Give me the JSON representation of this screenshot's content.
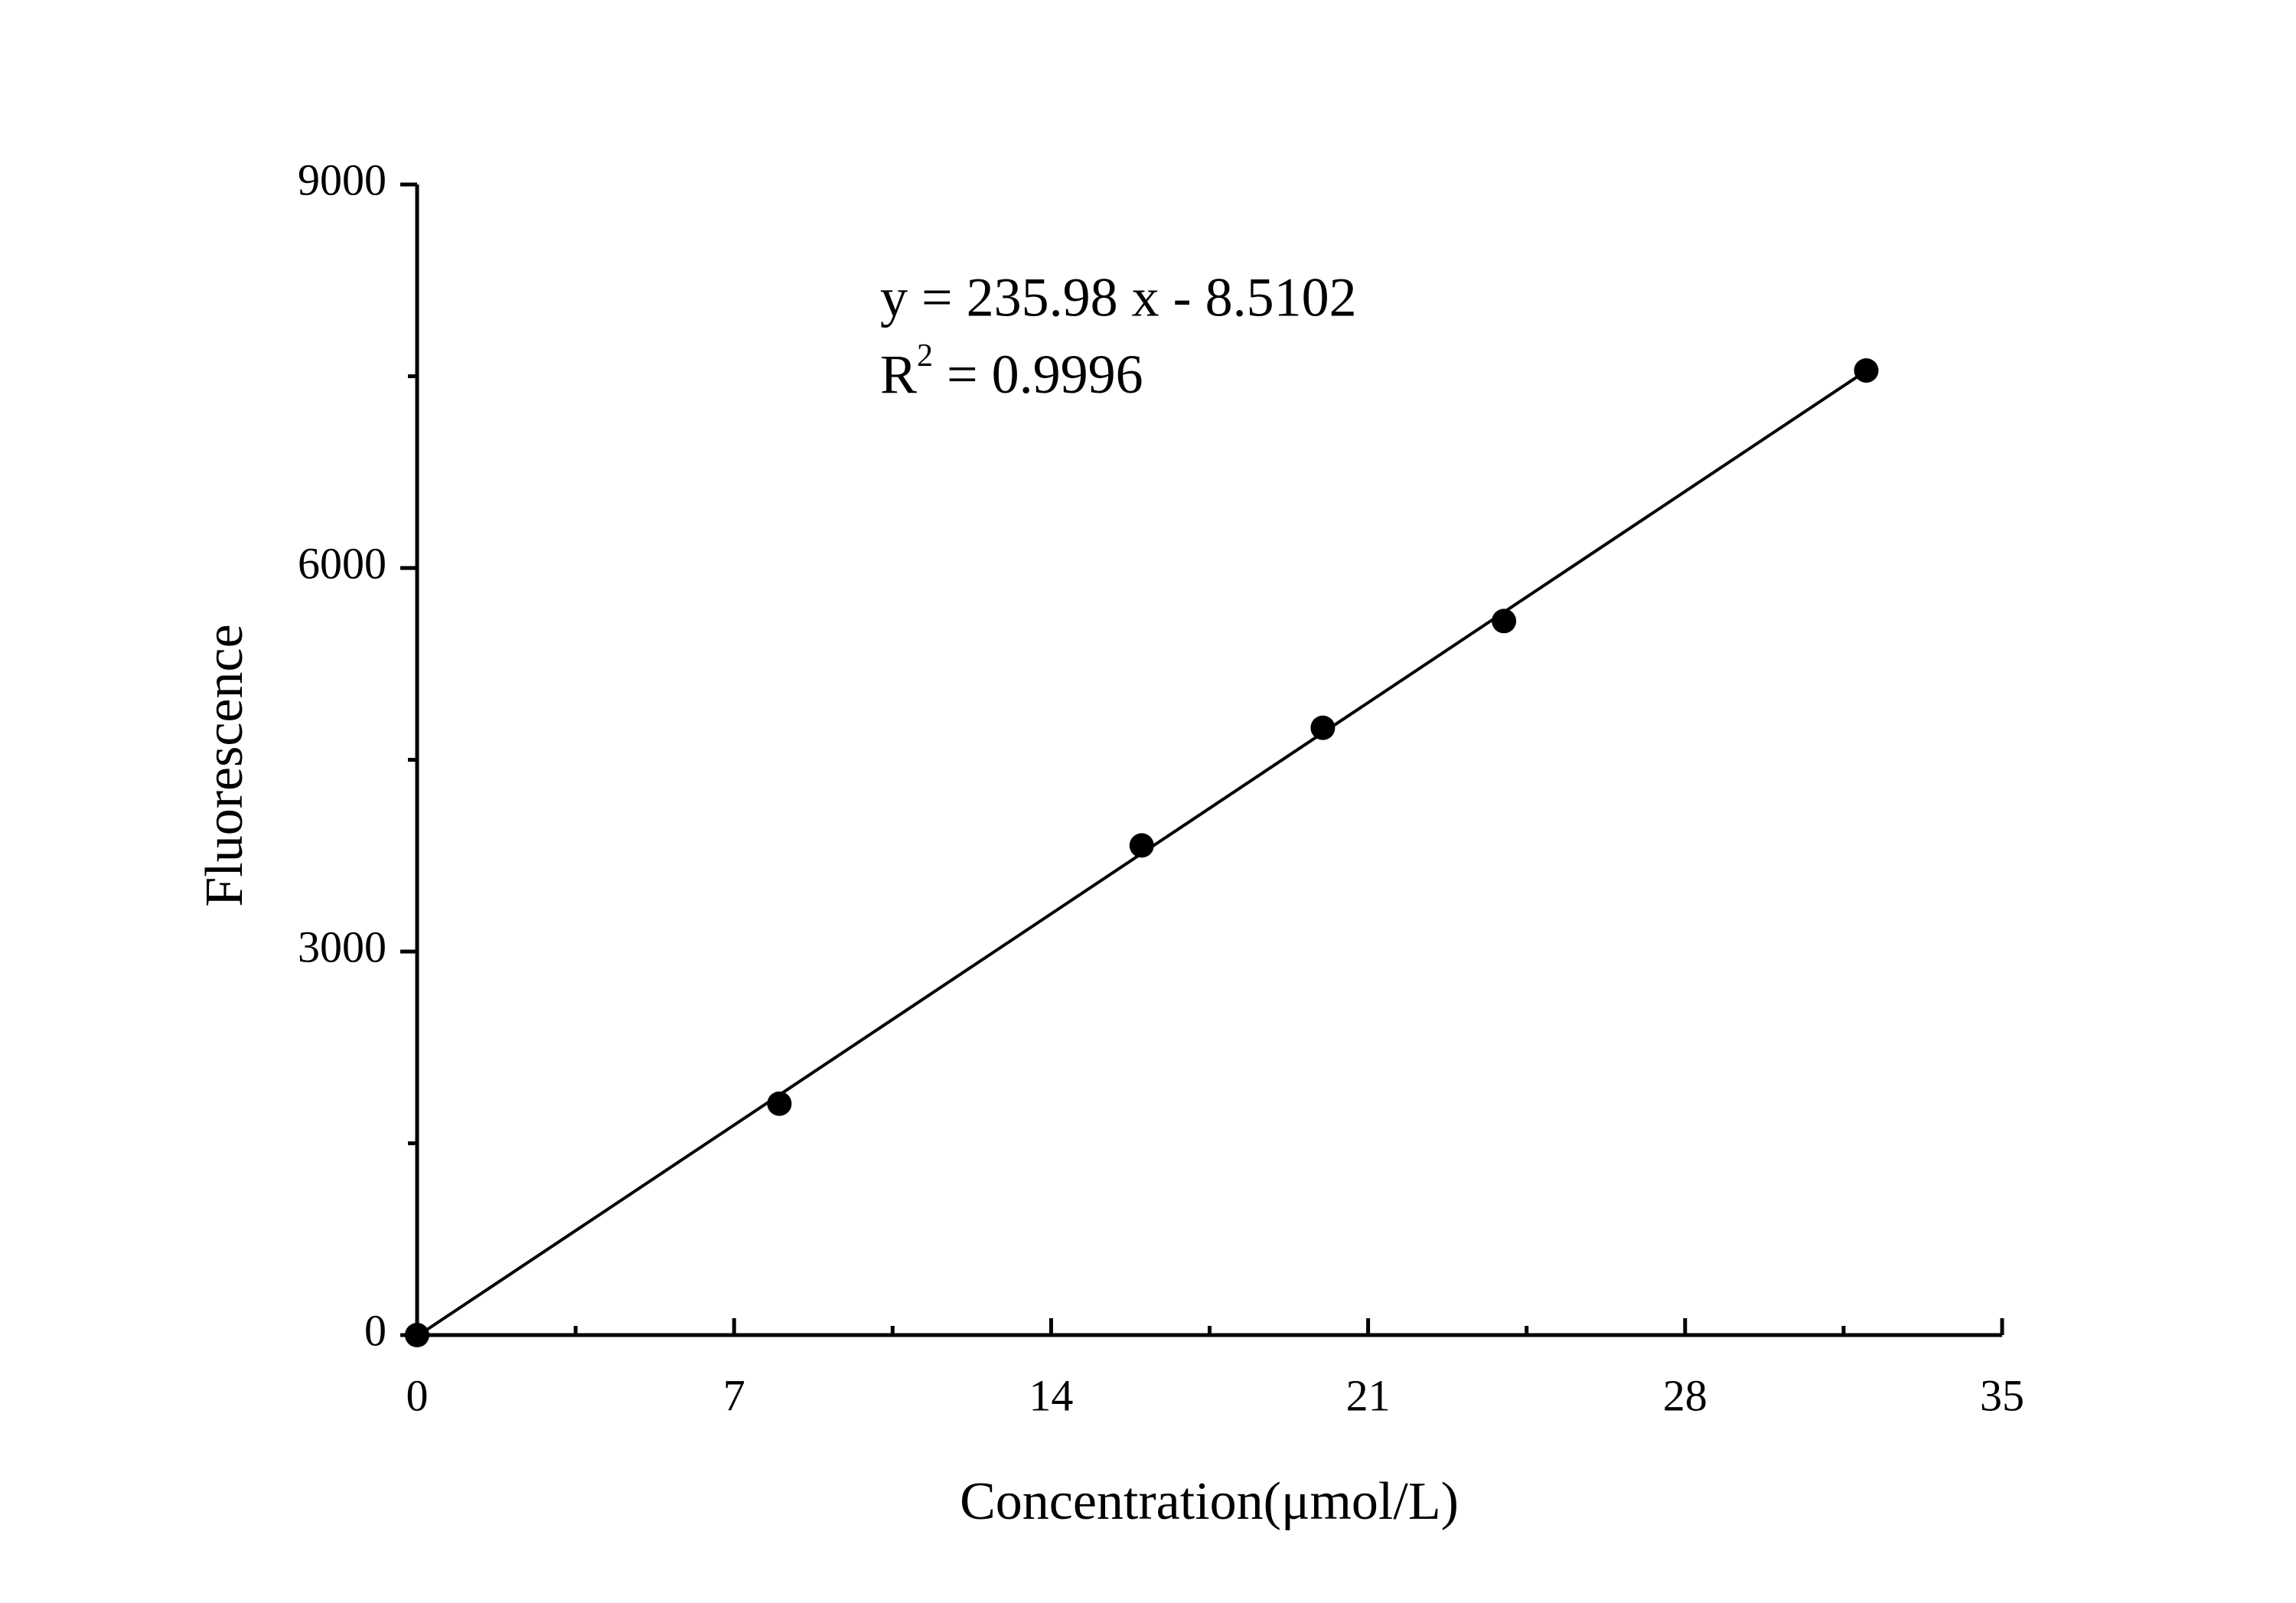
{
  "chart_data": {
    "type": "scatter",
    "x_label": "Concentration(μmol/L)",
    "y_label": "Fluorescence",
    "annotation": {
      "line1": "y = 235.98 x - 8.5102",
      "r_base": "R",
      "r_sup": "2",
      "r_rest": " = 0.9996"
    },
    "x": [
      0,
      8,
      16,
      20,
      24,
      32
    ],
    "values": [
      0,
      1810,
      3830,
      4750,
      5585,
      7545
    ],
    "color": "#000000",
    "fit_line": {
      "x": [
        0,
        32
      ],
      "values": [
        -9,
        7543
      ],
      "color": "#000000"
    },
    "xlim": [
      0,
      35
    ],
    "xticks": [
      0,
      7,
      14,
      21,
      28,
      35
    ],
    "xticks_minor": [
      3.5,
      10.5,
      17.5,
      24.5,
      31.5
    ],
    "ylim": [
      0,
      9000
    ],
    "yticks": [
      0,
      3000,
      6000,
      9000
    ],
    "yticks_minor": [
      1500,
      4500,
      7500
    ],
    "grid": false
  }
}
